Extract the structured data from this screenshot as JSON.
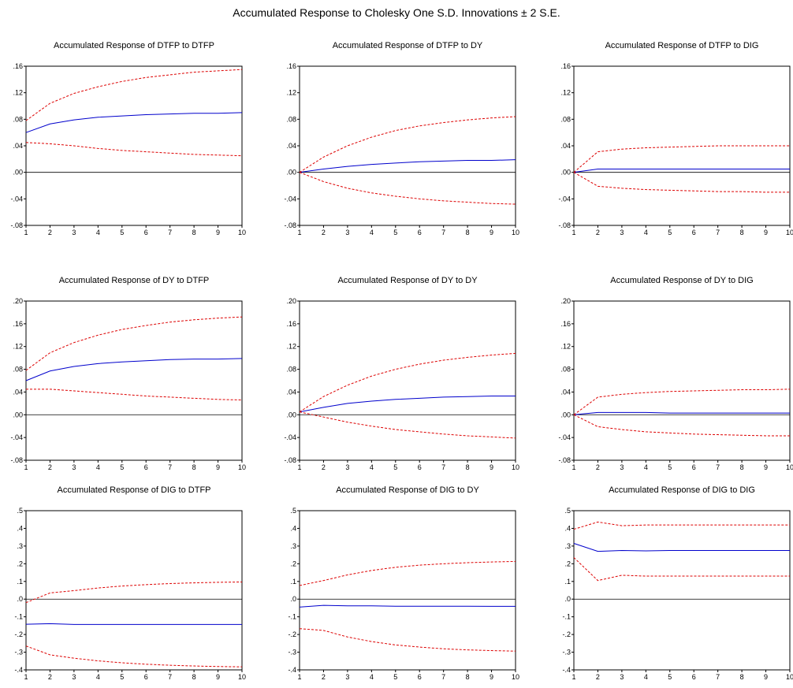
{
  "title": "Accumulated Response to Cholesky One S.D. Innovations ± 2 S.E.",
  "colors": {
    "response": "#0000cc",
    "band": "#dd0000",
    "zero": "#000000",
    "frame": "#000000"
  },
  "chart_data": [
    {
      "type": "line",
      "title": "Accumulated Response of DTFP to DTFP",
      "x": [
        1,
        2,
        3,
        4,
        5,
        6,
        7,
        8,
        9,
        10
      ],
      "ylim": [
        -0.08,
        0.16
      ],
      "yticks": [
        ".16",
        ".12",
        ".08",
        ".04",
        ".00",
        "-.04",
        "-.08"
      ],
      "series": [
        {
          "role": "response",
          "values": [
            0.06,
            0.073,
            0.079,
            0.083,
            0.085,
            0.087,
            0.088,
            0.089,
            0.089,
            0.09
          ]
        },
        {
          "role": "upper",
          "values": [
            0.078,
            0.104,
            0.119,
            0.129,
            0.137,
            0.143,
            0.147,
            0.151,
            0.153,
            0.155
          ]
        },
        {
          "role": "lower",
          "values": [
            0.045,
            0.043,
            0.04,
            0.036,
            0.033,
            0.031,
            0.029,
            0.027,
            0.026,
            0.025
          ]
        }
      ]
    },
    {
      "type": "line",
      "title": "Accumulated Response of DTFP to DY",
      "x": [
        1,
        2,
        3,
        4,
        5,
        6,
        7,
        8,
        9,
        10
      ],
      "ylim": [
        -0.08,
        0.16
      ],
      "yticks": [
        ".16",
        ".12",
        ".08",
        ".04",
        ".00",
        "-.04",
        "-.08"
      ],
      "series": [
        {
          "role": "response",
          "values": [
            0.0,
            0.005,
            0.009,
            0.012,
            0.014,
            0.016,
            0.017,
            0.018,
            0.018,
            0.019
          ]
        },
        {
          "role": "upper",
          "values": [
            0.0,
            0.023,
            0.04,
            0.053,
            0.063,
            0.07,
            0.075,
            0.079,
            0.082,
            0.084
          ]
        },
        {
          "role": "lower",
          "values": [
            0.0,
            -0.014,
            -0.024,
            -0.031,
            -0.036,
            -0.04,
            -0.043,
            -0.045,
            -0.047,
            -0.048
          ]
        }
      ]
    },
    {
      "type": "line",
      "title": "Accumulated Response of DTFP to DIG",
      "x": [
        1,
        2,
        3,
        4,
        5,
        6,
        7,
        8,
        9,
        10
      ],
      "ylim": [
        -0.08,
        0.16
      ],
      "yticks": [
        ".16",
        ".12",
        ".08",
        ".04",
        ".00",
        "-.04",
        "-.08"
      ],
      "series": [
        {
          "role": "response",
          "values": [
            0.0,
            0.005,
            0.005,
            0.005,
            0.005,
            0.005,
            0.005,
            0.005,
            0.005,
            0.005
          ]
        },
        {
          "role": "upper",
          "values": [
            0.0,
            0.031,
            0.035,
            0.037,
            0.038,
            0.039,
            0.04,
            0.04,
            0.04,
            0.04
          ]
        },
        {
          "role": "lower",
          "values": [
            0.0,
            -0.021,
            -0.024,
            -0.026,
            -0.027,
            -0.028,
            -0.029,
            -0.029,
            -0.03,
            -0.03
          ]
        }
      ]
    },
    {
      "type": "line",
      "title": "Accumulated Response of DY to DTFP",
      "x": [
        1,
        2,
        3,
        4,
        5,
        6,
        7,
        8,
        9,
        10
      ],
      "ylim": [
        -0.08,
        0.2
      ],
      "yticks": [
        ".20",
        ".16",
        ".12",
        ".08",
        ".04",
        ".00",
        "-.04",
        "-.08"
      ],
      "series": [
        {
          "role": "response",
          "values": [
            0.06,
            0.077,
            0.085,
            0.09,
            0.093,
            0.095,
            0.097,
            0.098,
            0.098,
            0.099
          ]
        },
        {
          "role": "upper",
          "values": [
            0.078,
            0.109,
            0.127,
            0.14,
            0.15,
            0.157,
            0.163,
            0.167,
            0.17,
            0.172
          ]
        },
        {
          "role": "lower",
          "values": [
            0.045,
            0.045,
            0.042,
            0.039,
            0.036,
            0.033,
            0.031,
            0.029,
            0.027,
            0.026
          ]
        }
      ]
    },
    {
      "type": "line",
      "title": "Accumulated Response of DY to DY",
      "x": [
        1,
        2,
        3,
        4,
        5,
        6,
        7,
        8,
        9,
        10
      ],
      "ylim": [
        -0.08,
        0.2
      ],
      "yticks": [
        ".20",
        ".16",
        ".12",
        ".08",
        ".04",
        ".00",
        "-.04",
        "-.08"
      ],
      "series": [
        {
          "role": "response",
          "values": [
            0.005,
            0.013,
            0.02,
            0.024,
            0.027,
            0.029,
            0.031,
            0.032,
            0.033,
            0.033
          ]
        },
        {
          "role": "upper",
          "values": [
            0.005,
            0.032,
            0.052,
            0.068,
            0.08,
            0.089,
            0.096,
            0.101,
            0.105,
            0.108
          ]
        },
        {
          "role": "lower",
          "values": [
            0.005,
            -0.004,
            -0.013,
            -0.02,
            -0.026,
            -0.03,
            -0.034,
            -0.037,
            -0.039,
            -0.041
          ]
        }
      ]
    },
    {
      "type": "line",
      "title": "Accumulated Response of DY to DIG",
      "x": [
        1,
        2,
        3,
        4,
        5,
        6,
        7,
        8,
        9,
        10
      ],
      "ylim": [
        -0.08,
        0.2
      ],
      "yticks": [
        ".20",
        ".16",
        ".12",
        ".08",
        ".04",
        ".00",
        "-.04",
        "-.08"
      ],
      "series": [
        {
          "role": "response",
          "values": [
            0.0,
            0.004,
            0.004,
            0.004,
            0.003,
            0.003,
            0.003,
            0.003,
            0.003,
            0.003
          ]
        },
        {
          "role": "upper",
          "values": [
            0.0,
            0.031,
            0.036,
            0.039,
            0.041,
            0.042,
            0.043,
            0.044,
            0.044,
            0.045
          ]
        },
        {
          "role": "lower",
          "values": [
            0.0,
            -0.021,
            -0.026,
            -0.03,
            -0.032,
            -0.034,
            -0.035,
            -0.036,
            -0.037,
            -0.037
          ]
        }
      ]
    },
    {
      "type": "line",
      "title": "Accumulated Response of DIG to DTFP",
      "x": [
        1,
        2,
        3,
        4,
        5,
        6,
        7,
        8,
        9,
        10
      ],
      "ylim": [
        -0.4,
        0.5
      ],
      "yticks": [
        ".5",
        ".4",
        ".3",
        ".2",
        ".1",
        ".0",
        "-.1",
        "-.2",
        "-.3",
        "-.4"
      ],
      "series": [
        {
          "role": "response",
          "values": [
            -0.142,
            -0.139,
            -0.143,
            -0.143,
            -0.143,
            -0.143,
            -0.143,
            -0.143,
            -0.143,
            -0.143
          ]
        },
        {
          "role": "upper",
          "values": [
            -0.02,
            0.035,
            0.048,
            0.063,
            0.074,
            0.082,
            0.088,
            0.092,
            0.095,
            0.097
          ]
        },
        {
          "role": "lower",
          "values": [
            -0.265,
            -0.315,
            -0.334,
            -0.349,
            -0.36,
            -0.368,
            -0.374,
            -0.378,
            -0.381,
            -0.383
          ]
        }
      ]
    },
    {
      "type": "line",
      "title": "Accumulated Response of DIG to DY",
      "x": [
        1,
        2,
        3,
        4,
        5,
        6,
        7,
        8,
        9,
        10
      ],
      "ylim": [
        -0.4,
        0.5
      ],
      "yticks": [
        ".5",
        ".4",
        ".3",
        ".2",
        ".1",
        ".0",
        "-.1",
        "-.2",
        "-.3",
        "-.4"
      ],
      "series": [
        {
          "role": "response",
          "values": [
            -0.045,
            -0.035,
            -0.038,
            -0.038,
            -0.04,
            -0.04,
            -0.04,
            -0.04,
            -0.041,
            -0.041
          ]
        },
        {
          "role": "upper",
          "values": [
            0.077,
            0.105,
            0.137,
            0.162,
            0.18,
            0.192,
            0.2,
            0.206,
            0.21,
            0.213
          ]
        },
        {
          "role": "lower",
          "values": [
            -0.167,
            -0.177,
            -0.214,
            -0.24,
            -0.259,
            -0.271,
            -0.281,
            -0.287,
            -0.291,
            -0.294
          ]
        }
      ]
    },
    {
      "type": "line",
      "title": "Accumulated Response of DIG to DIG",
      "x": [
        1,
        2,
        3,
        4,
        5,
        6,
        7,
        8,
        9,
        10
      ],
      "ylim": [
        -0.4,
        0.5
      ],
      "yticks": [
        ".5",
        ".4",
        ".3",
        ".2",
        ".1",
        ".0",
        "-.1",
        "-.2",
        "-.3",
        "-.4"
      ],
      "series": [
        {
          "role": "response",
          "values": [
            0.315,
            0.27,
            0.275,
            0.273,
            0.275,
            0.275,
            0.275,
            0.275,
            0.275,
            0.275
          ]
        },
        {
          "role": "upper",
          "values": [
            0.395,
            0.436,
            0.415,
            0.419,
            0.419,
            0.419,
            0.419,
            0.419,
            0.419,
            0.419
          ]
        },
        {
          "role": "lower",
          "values": [
            0.235,
            0.105,
            0.135,
            0.13,
            0.13,
            0.13,
            0.13,
            0.13,
            0.13,
            0.13
          ]
        }
      ]
    }
  ]
}
